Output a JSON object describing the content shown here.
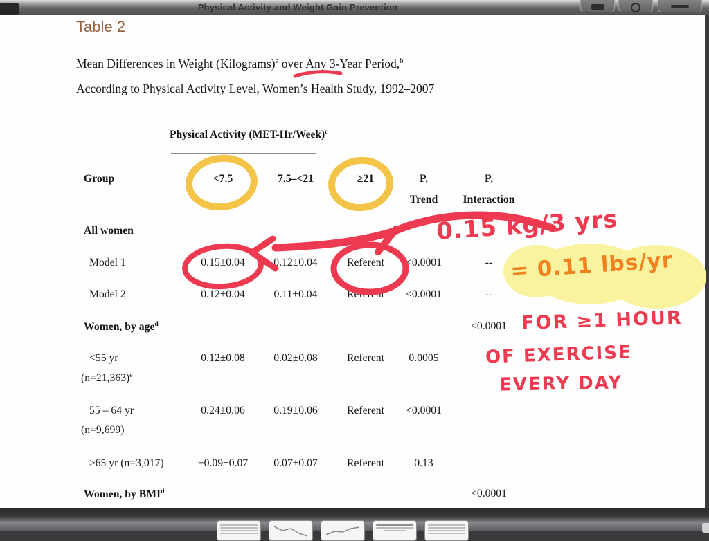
{
  "titlebar": {
    "title": "Physical Activity and Weight Gain Prevention",
    "buttons": [
      {
        "icon": "export-icon"
      },
      {
        "icon": "search-icon"
      },
      {
        "icon": "outline-icon"
      }
    ]
  },
  "document": {
    "heading": "Table 2",
    "caption": {
      "line1_part1": "Mean Differences in Weight (Kilograms)",
      "sup_a": "a",
      "line1_part2": " over Any 3-Year Period,",
      "sup_b": "b",
      "line2": "According to Physical Activity Level, Women’s Health Study, 1992–2007"
    },
    "table": {
      "span_label": "Physical Activity (MET-Hr/Week)",
      "span_sup": "c",
      "header": {
        "group": "Group",
        "c1": "<7.5",
        "c2": "7.5–<21",
        "c3": "≥21",
        "c4a": "P,",
        "c4b": "Trend",
        "c5a": "P,",
        "c5b": "Interaction"
      },
      "rows": [
        {
          "label": "All women",
          "sup": "",
          "style": "section",
          "cells": [
            "",
            "",
            "",
            "",
            ""
          ]
        },
        {
          "label": "Model 1",
          "sup": "",
          "style": "item",
          "cells": [
            "0.15±0.04",
            "0.12±0.04",
            "Referent",
            "<0.0001",
            "--"
          ]
        },
        {
          "label": "Model 2",
          "sup": "",
          "style": "item",
          "cells": [
            "0.12±0.04",
            "0.11±0.04",
            "Referent",
            "<0.0001",
            "--"
          ]
        },
        {
          "label": "Women, by age",
          "sup": "d",
          "style": "section",
          "cells": [
            "",
            "",
            "",
            "",
            "<0.0001"
          ]
        },
        {
          "label": "<55 yr",
          "sup": "",
          "style": "item",
          "cells": [
            "0.12±0.08",
            "0.02±0.08",
            "Referent",
            "0.0005",
            ""
          ]
        },
        {
          "label": "(n=21,363)",
          "sup": "e",
          "style": "sub",
          "cells": [
            "",
            "",
            "",
            "",
            ""
          ]
        },
        {
          "label": "55 – 64 yr",
          "sup": "",
          "style": "item",
          "cells": [
            "0.24±0.06",
            "0.19±0.06",
            "Referent",
            "<0.0001",
            ""
          ]
        },
        {
          "label": "(n=9,699)",
          "sup": "",
          "style": "sub",
          "cells": [
            "",
            "",
            "",
            "",
            ""
          ]
        },
        {
          "label": "≥65 yr (n=3,017)",
          "sup": "",
          "style": "item",
          "cells": [
            "−0.09±0.07",
            "0.07±0.07",
            "Referent",
            "0.13",
            ""
          ]
        },
        {
          "label": "Women, by BMI",
          "sup": "d",
          "style": "section",
          "cells": [
            "",
            "",
            "",
            "",
            "<0.0001"
          ]
        }
      ]
    }
  },
  "annotations": {
    "kg_note": "0.15 kg/3 yrs",
    "lbs_note": "= 0.11 lbs/yr",
    "for_note": "FOR ≥1 HOUR",
    "of_note": "OF EXERCISE",
    "every_note": "EVERY DAY",
    "colors": {
      "marker_red": "#ee3a50",
      "marker_orange": "#f0831f",
      "circle_yellow": "#f2c13d",
      "highlight_yellow": "#f9f3a0"
    }
  },
  "thumbnails": [
    {
      "kind": "text"
    },
    {
      "kind": "chart-down"
    },
    {
      "kind": "chart-up"
    },
    {
      "kind": "heading"
    },
    {
      "kind": "text"
    }
  ]
}
